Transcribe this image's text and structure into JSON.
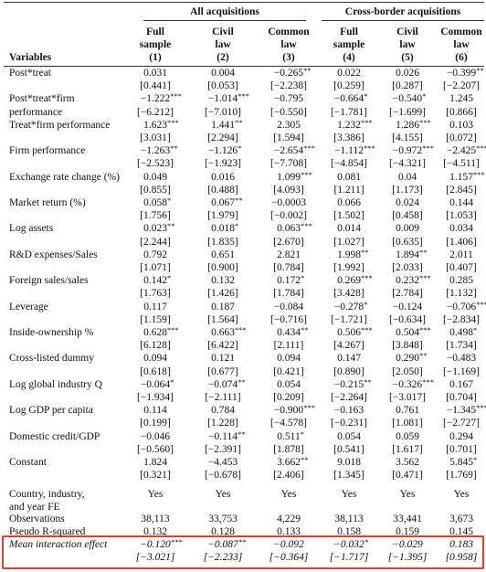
{
  "header": {
    "groups": [
      "All acquisitions",
      "Cross-border acquisitions"
    ],
    "variables_label": "Variables",
    "columns": [
      [
        "Full",
        "sample",
        "(1)"
      ],
      [
        "Civil",
        "law",
        "(2)"
      ],
      [
        "Common",
        "law",
        "(3)"
      ],
      [
        "Full",
        "sample",
        "(4)"
      ],
      [
        "Civil",
        "law",
        "(5)"
      ],
      [
        "Common",
        "law",
        "(6)"
      ]
    ]
  },
  "table": {
    "body": [
      {
        "label": [
          "Post*treat"
        ],
        "lines": [
          [
            "0.031",
            "0.004",
            "−0.265**",
            "0.022",
            "0.026",
            "−0.399**"
          ],
          [
            "[0.441]",
            "[0.053]",
            "[−2.238]",
            "[0.259]",
            "[0.287]",
            "[−2.207]"
          ]
        ]
      },
      {
        "label": [
          "Post*treat*firm",
          "performance"
        ],
        "lines": [
          [
            "−1.222***",
            "−1.014***",
            "−0.795",
            "−0.664*",
            "−0.540*",
            "1.245"
          ],
          [
            "[−6.212]",
            "[−7.010]",
            "[−0.550]",
            "[−1.781]",
            "[−1.699]",
            "[0.866]"
          ]
        ]
      },
      {
        "label": [
          "Treat*firm performance"
        ],
        "lines": [
          [
            "1.623***",
            "1.441**",
            "2.305",
            "1.232***",
            "1.286***",
            "0.103"
          ],
          [
            "[3.031]",
            "[2.294]",
            "[1.594]",
            "[3.386]",
            "[4.155]",
            "[0.072]"
          ]
        ]
      },
      {
        "label": [
          "Firm performance"
        ],
        "lines": [
          [
            "−1.263**",
            "−1.126*",
            "−2.654***",
            "−1.112***",
            "−0.972***",
            "−2.425***"
          ],
          [
            "[−2.523]",
            "[−1.923]",
            "[−7.708]",
            "[−4.854]",
            "[−4.321]",
            "[−4.511]"
          ]
        ]
      },
      {
        "label": [
          "Exchange rate change (%)"
        ],
        "lines": [
          [
            "0.049",
            "0.016",
            "1.099***",
            "0.081",
            "0.04",
            "1.157***"
          ],
          [
            "[0.855]",
            "[0.488]",
            "[4.093]",
            "[1.211]",
            "[1.173]",
            "[2.845]"
          ]
        ]
      },
      {
        "label": [
          "Market return (%)"
        ],
        "lines": [
          [
            "0.058*",
            "0.067**",
            "−0.0003",
            "0.066",
            "0.024",
            "0.144"
          ],
          [
            "[1.756]",
            "[1.979]",
            "[−0.002]",
            "[1.502]",
            "[0.458]",
            "[1.053]"
          ]
        ]
      },
      {
        "label": [
          "Log assets"
        ],
        "lines": [
          [
            "0.023**",
            "0.018*",
            "0.063***",
            "0.014",
            "0.009",
            "0.034"
          ],
          [
            "[2.244]",
            "[1.835]",
            "[2.670]",
            "[1.027]",
            "[0.635]",
            "[1.406]"
          ]
        ]
      },
      {
        "label": [
          "R&D expenses/Sales"
        ],
        "lines": [
          [
            "0.792",
            "0.651",
            "2.821",
            "1.998**",
            "1.894**",
            "2.011"
          ],
          [
            "[1.071]",
            "[0.900]",
            "[0.784]",
            "[1.992]",
            "[2.033]",
            "[0.407]"
          ]
        ]
      },
      {
        "label": [
          "Foreign sales/sales"
        ],
        "lines": [
          [
            "0.142*",
            "0.132",
            "0.172*",
            "0.269***",
            "0.232***",
            "0.285"
          ],
          [
            "[1.763]",
            "[1.426]",
            "[1.784]",
            "[3.428]",
            "[2.784]",
            "[1.132]"
          ]
        ]
      },
      {
        "label": [
          "Leverage"
        ],
        "lines": [
          [
            "0.117",
            "0.187",
            "−0.084",
            "−0.278*",
            "−0.124",
            "−0.706***"
          ],
          [
            "[1.159]",
            "[1.564]",
            "[−0.716]",
            "[−1.721]",
            "[−0.634]",
            "[−2.834]"
          ]
        ]
      },
      {
        "label": [
          "Inside-ownership %"
        ],
        "lines": [
          [
            "0.628***",
            "0.663***",
            "0.434**",
            "0.506***",
            "0.504***",
            "0.498*"
          ],
          [
            "[6.128]",
            "[6.422]",
            "[2.111]",
            "[4.267]",
            "[3.848]",
            "[1.734]"
          ]
        ]
      },
      {
        "label": [
          "Cross-listed dummy"
        ],
        "lines": [
          [
            "0.094",
            "0.121",
            "0.094",
            "0.147",
            "0.290**",
            "−0.483"
          ],
          [
            "[0.618]",
            "[0.677]",
            "[0.421]",
            "[0.890]",
            "[2.050]",
            "[−1.169]"
          ]
        ]
      },
      {
        "label": [
          "Log global industry Q"
        ],
        "lines": [
          [
            "−0.064*",
            "−0.074**",
            "0.054",
            "−0.215**",
            "−0.326***",
            "0.167"
          ],
          [
            "[−1.934]",
            "[−2.111]",
            "[0.209]",
            "[−2.264]",
            "[−3.017]",
            "[0.704]"
          ]
        ]
      },
      {
        "label": [
          "Log GDP per capita"
        ],
        "lines": [
          [
            "0.114",
            "0.784",
            "−0.900***",
            "−0.163",
            "0.761",
            "−1.345***"
          ],
          [
            "[0.199]",
            "[1.228]",
            "[−4.578]",
            "[−0.231]",
            "[1.081]",
            "[−2.727]"
          ]
        ]
      },
      {
        "label": [
          "Domestic credit/GDP"
        ],
        "lines": [
          [
            "−0.046",
            "−0.114**",
            "0.511*",
            "0.054",
            "0.059",
            "0.294"
          ],
          [
            "[−0.560]",
            "[−2.391]",
            "[1.878]",
            "[0.541]",
            "[1.617]",
            "[0.701]"
          ]
        ]
      },
      {
        "label": [
          "Constant"
        ],
        "lines": [
          [
            "1.824",
            "−4.453",
            "3.662**",
            "9.018",
            "3.562",
            "5.845*"
          ],
          [
            "[0.321]",
            "[−0.678]",
            "[2.406]",
            "[1.345]",
            "[0.471]",
            "[1.769]"
          ]
        ]
      }
    ],
    "fe": [
      {
        "label": [
          "Country, industry,",
          "and year FE"
        ],
        "lines": [
          [
            "Yes",
            "Yes",
            "Yes",
            "Yes",
            "Yes",
            "Yes"
          ]
        ]
      }
    ],
    "stats": [
      {
        "label": [
          "Observations"
        ],
        "lines": [
          [
            "38,113",
            "33,753",
            "4,229",
            "38,113",
            "33,441",
            "3,673"
          ]
        ]
      },
      {
        "label": [
          "Pseudo R-squared"
        ],
        "lines": [
          [
            "0.132",
            "0.128",
            "0.133",
            "0.158",
            "0.159",
            "0.145"
          ]
        ]
      }
    ],
    "mean": [
      {
        "label": [
          "Mean interaction effect"
        ],
        "lines": [
          [
            "−0.120***",
            "−0.087**",
            "−0.092",
            "−0.032*",
            "−0.029",
            "0.183"
          ],
          [
            "[−3.021]",
            "[−2.233]",
            "[−0.364]",
            "[−1.717]",
            "[−1.395]",
            "[0.958]"
          ]
        ]
      }
    ]
  }
}
